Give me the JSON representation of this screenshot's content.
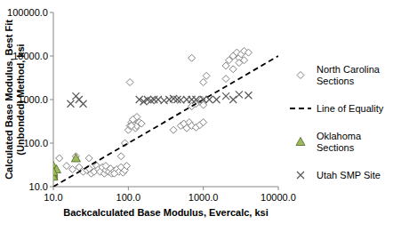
{
  "chart_data": {
    "type": "scatter",
    "xlabel": "Backcalculated Base Modulus, Evercalc, ksi",
    "ylabel": "Calculated Base Modulus, Best Fit (Unbonded) Method, ksi",
    "log": true,
    "grid": false,
    "legend": "right",
    "xlim": [
      10,
      10000
    ],
    "ylim": [
      10,
      100000
    ],
    "xticks": [
      {
        "value": 10,
        "label": "10.0"
      },
      {
        "value": 100,
        "label": "100.0"
      },
      {
        "value": 1000,
        "label": "1000.0"
      },
      {
        "value": 10000,
        "label": "10000.0"
      }
    ],
    "yticks": [
      {
        "value": 10,
        "label": "10.0"
      },
      {
        "value": 100,
        "label": "100.0"
      },
      {
        "value": 1000,
        "label": "1000.0"
      },
      {
        "value": 10000,
        "label": "10000.0"
      },
      {
        "value": 100000,
        "label": "100000.0"
      }
    ],
    "series": [
      {
        "name": "North Carolina Sections",
        "type": "scatter",
        "marker": "diamond",
        "color": "#7f7f7f",
        "x": [
          12,
          15,
          18,
          20,
          22,
          25,
          28,
          30,
          32,
          35,
          38,
          40,
          42,
          45,
          48,
          50,
          55,
          58,
          60,
          65,
          70,
          75,
          80,
          85,
          90,
          95,
          30,
          50,
          65,
          80,
          90,
          100,
          105,
          110,
          115,
          120,
          125,
          130,
          105,
          115,
          130,
          140,
          150,
          110,
          400,
          500,
          550,
          600,
          650,
          700,
          800,
          900,
          1000,
          700,
          800,
          900,
          1000,
          1000,
          1100,
          700,
          950,
          2000,
          2200,
          2500,
          2800,
          3000,
          3200,
          3500,
          4000,
          2500,
          3000,
          3500,
          2000
        ],
        "values": [
          45,
          30,
          25,
          50,
          28,
          22,
          24,
          26,
          20,
          22,
          30,
          25,
          22,
          28,
          20,
          24,
          22,
          26,
          20,
          23,
          25,
          22,
          28,
          21,
          24,
          30,
          45,
          30,
          20,
          50,
          100,
          200,
          250,
          300,
          280,
          350,
          220,
          400,
          2500,
          350,
          250,
          300,
          280,
          250,
          200,
          250,
          280,
          220,
          300,
          250,
          230,
          260,
          300,
          700,
          800,
          900,
          750,
          2500,
          3500,
          9000,
          1000,
          6000,
          8000,
          10000,
          12000,
          9000,
          11000,
          13000,
          12000,
          5000,
          7000,
          8000,
          3000
        ]
      },
      {
        "name": "Line of Equality",
        "type": "line",
        "line_style": "dashed",
        "color": "#000000",
        "x": [
          10,
          10000
        ],
        "values": [
          10,
          10000
        ]
      },
      {
        "name": "Oklahoma Sections",
        "type": "scatter",
        "marker": "triangle",
        "color": "#9bbb59",
        "x": [
          10,
          10,
          10,
          10,
          11,
          20,
          10
        ],
        "values": [
          30,
          20,
          18,
          17,
          25,
          45,
          22
        ]
      },
      {
        "name": "Utah SMP Site",
        "type": "scatter",
        "marker": "x",
        "color": "#595959",
        "x": [
          17,
          20,
          25,
          22,
          140,
          160,
          180,
          200,
          220,
          250,
          300,
          350,
          400,
          450,
          500,
          600,
          700,
          800,
          1000,
          1200,
          1500,
          2000,
          3000,
          4000,
          2500
        ],
        "values": [
          800,
          1200,
          800,
          1000,
          1000,
          900,
          1000,
          950,
          1000,
          1000,
          950,
          1000,
          1050,
          1000,
          980,
          1000,
          1000,
          1000,
          1000,
          1000,
          1000,
          1200,
          1300,
          1250,
          1000
        ]
      }
    ]
  }
}
